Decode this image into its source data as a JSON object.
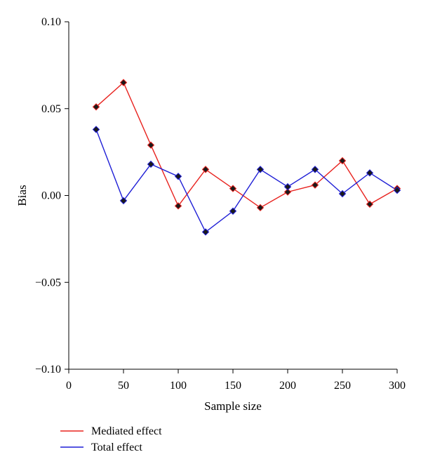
{
  "chart_data": {
    "type": "line",
    "xlabel": "Sample size",
    "ylabel": "Bias",
    "xlim": [
      0,
      300
    ],
    "ylim": [
      -0.1,
      0.1
    ],
    "x_ticks": [
      0,
      50,
      100,
      150,
      200,
      250,
      300
    ],
    "y_ticks": [
      0.1,
      0.05,
      0.0,
      -0.05,
      -0.1
    ],
    "x_tick_labels": [
      "0",
      "50",
      "100",
      "150",
      "200",
      "250",
      "300"
    ],
    "y_tick_labels": [
      "0.10",
      "0.05",
      "0.00",
      "−0.05",
      "−0.10"
    ],
    "grid": false,
    "legend_position": "bottom-left",
    "marker": "diamond",
    "x": [
      25,
      50,
      75,
      100,
      125,
      150,
      175,
      200,
      225,
      250,
      275,
      300
    ],
    "series": [
      {
        "name": "Mediated effect",
        "color": "#e8231f",
        "values": [
          0.051,
          0.065,
          0.029,
          -0.006,
          0.015,
          0.004,
          -0.007,
          0.002,
          0.006,
          0.02,
          -0.005,
          0.004
        ]
      },
      {
        "name": "Total effect",
        "color": "#1f1fd6",
        "values": [
          0.038,
          -0.003,
          0.018,
          0.011,
          -0.021,
          -0.009,
          0.015,
          0.005,
          0.015,
          0.001,
          0.013,
          0.003
        ]
      }
    ]
  }
}
